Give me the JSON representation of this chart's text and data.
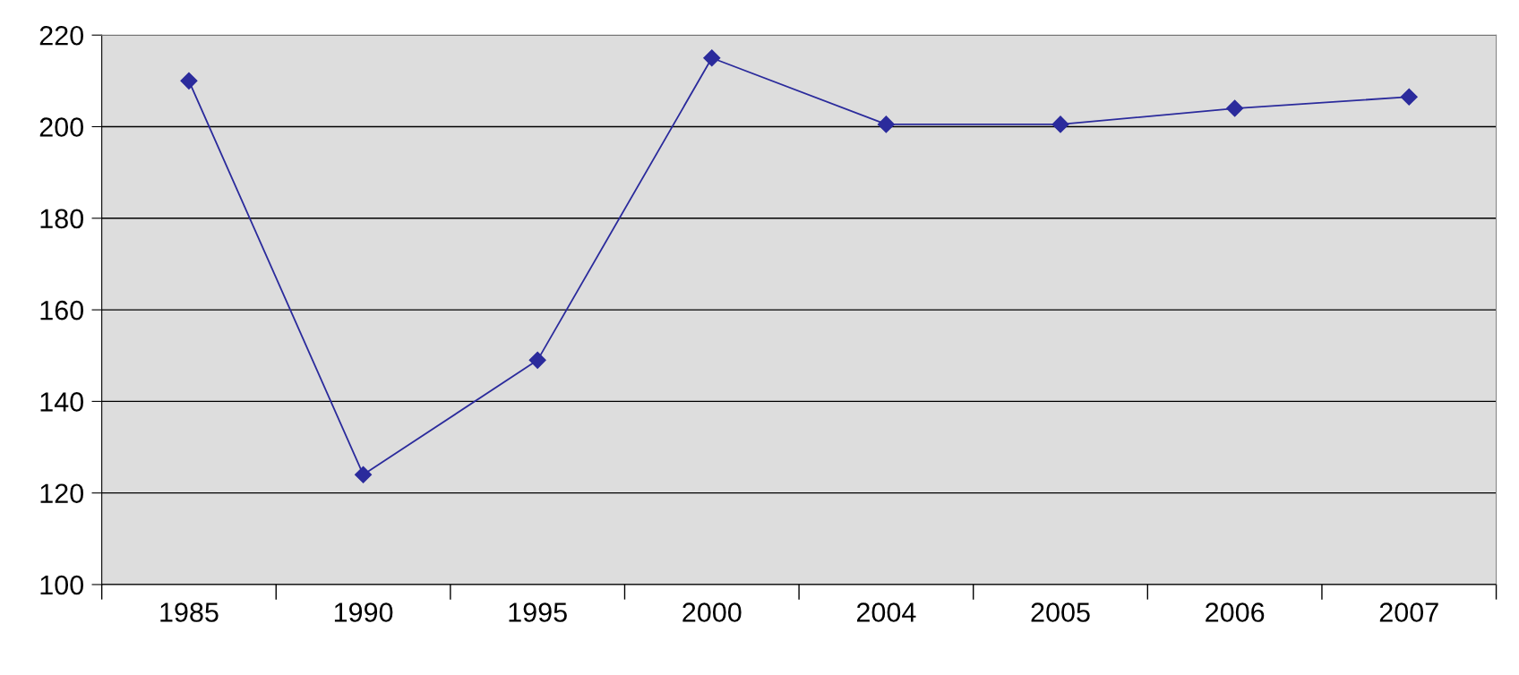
{
  "chart_data": {
    "type": "line",
    "categories": [
      "1985",
      "1990",
      "1995",
      "2000",
      "2004",
      "2005",
      "2006",
      "2007"
    ],
    "series": [
      {
        "color": "#2b2b9c",
        "values": [
          210,
          124,
          149,
          215,
          200.5,
          200.5,
          204,
          206.5
        ]
      }
    ],
    "ylim": [
      100,
      220
    ],
    "yticks": [
      100,
      120,
      140,
      160,
      180,
      200,
      220
    ],
    "grid": "y",
    "marker": "diamond",
    "line_style": "solid",
    "legend": false
  }
}
